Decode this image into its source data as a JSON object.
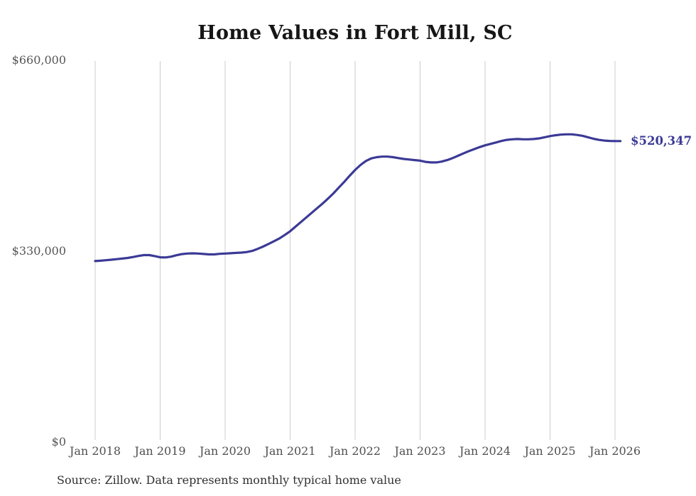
{
  "page": {
    "background": "#ffffff"
  },
  "colors": {
    "line": "#3b3a96",
    "grid": "#cccccc",
    "title_text": "#161616",
    "axis_label_text": "#4f4f4f",
    "y_label_text": "#565656",
    "end_label_text": "#3b3a96",
    "source_text": "#303030"
  },
  "source": {
    "text": "Source: Zillow. Data represents monthly typical home value"
  },
  "chart_data": {
    "type": "line",
    "title": "Home Values in Fort Mill, SC",
    "xlabel": "",
    "ylabel": "",
    "ylim": [
      0,
      660000
    ],
    "grid": "vertical-yearly",
    "legend": "none",
    "end_label": "$520,347",
    "last_value": 520347,
    "y_ticks": [
      {
        "label": "$660,000",
        "value": 660000
      },
      {
        "label": "$330,000",
        "value": 330000
      },
      {
        "label": "$0",
        "value": 0
      }
    ],
    "x_ticks": [
      "Jan 2018",
      "Jan 2019",
      "Jan 2020",
      "Jan 2021",
      "Jan 2022",
      "Jan 2023",
      "Jan 2024",
      "Jan 2025",
      "Jan 2026"
    ],
    "series": [
      {
        "name": "Monthly typical home value",
        "color": "#3b3a96",
        "dates": [
          "2018-01",
          "2018-02",
          "2018-03",
          "2018-04",
          "2018-05",
          "2018-06",
          "2018-07",
          "2018-08",
          "2018-09",
          "2018-10",
          "2018-11",
          "2018-12",
          "2019-01",
          "2019-02",
          "2019-03",
          "2019-04",
          "2019-05",
          "2019-06",
          "2019-07",
          "2019-08",
          "2019-09",
          "2019-10",
          "2019-11",
          "2019-12",
          "2020-01",
          "2020-02",
          "2020-03",
          "2020-04",
          "2020-05",
          "2020-06",
          "2020-07",
          "2020-08",
          "2020-09",
          "2020-10",
          "2020-11",
          "2020-12",
          "2021-01",
          "2021-02",
          "2021-03",
          "2021-04",
          "2021-05",
          "2021-06",
          "2021-07",
          "2021-08",
          "2021-09",
          "2021-10",
          "2021-11",
          "2021-12",
          "2022-01",
          "2022-02",
          "2022-03",
          "2022-04",
          "2022-05",
          "2022-06",
          "2022-07",
          "2022-08",
          "2022-09",
          "2022-10",
          "2022-11",
          "2022-12",
          "2023-01",
          "2023-02",
          "2023-03",
          "2023-04",
          "2023-05",
          "2023-06",
          "2023-07",
          "2023-08",
          "2023-09",
          "2023-10",
          "2023-11",
          "2023-12",
          "2024-01",
          "2024-02",
          "2024-03",
          "2024-04",
          "2024-05",
          "2024-06",
          "2024-07",
          "2024-08",
          "2024-09",
          "2024-10",
          "2024-11",
          "2024-12",
          "2025-01",
          "2025-02",
          "2025-03",
          "2025-04",
          "2025-05",
          "2025-06",
          "2025-07",
          "2025-08",
          "2025-09",
          "2025-10",
          "2025-11",
          "2025-12",
          "2026-01",
          "2026-02"
        ],
        "values": [
          313000,
          313600,
          314400,
          315300,
          316200,
          317200,
          318400,
          320000,
          321800,
          323200,
          323300,
          321500,
          319500,
          319200,
          320500,
          323000,
          325000,
          326000,
          326300,
          326000,
          325200,
          324500,
          324500,
          325500,
          326000,
          326500,
          327000,
          327500,
          328500,
          330500,
          334000,
          338000,
          342500,
          347000,
          352000,
          358000,
          364500,
          372500,
          380500,
          388500,
          396500,
          404500,
          412500,
          421000,
          430000,
          440000,
          450000,
          460500,
          470500,
          479000,
          486000,
          490500,
          492500,
          493500,
          493500,
          492500,
          491000,
          489500,
          488500,
          487500,
          486500,
          484500,
          483500,
          483500,
          485000,
          487500,
          491000,
          495000,
          499000,
          503000,
          506500,
          510000,
          513000,
          515500,
          518000,
          520500,
          522500,
          523500,
          524000,
          523500,
          523500,
          524000,
          525000,
          527000,
          529000,
          530500,
          531500,
          532000,
          532000,
          531000,
          529500,
          527000,
          524500,
          522500,
          521300,
          520600,
          520400,
          520347
        ]
      }
    ]
  }
}
